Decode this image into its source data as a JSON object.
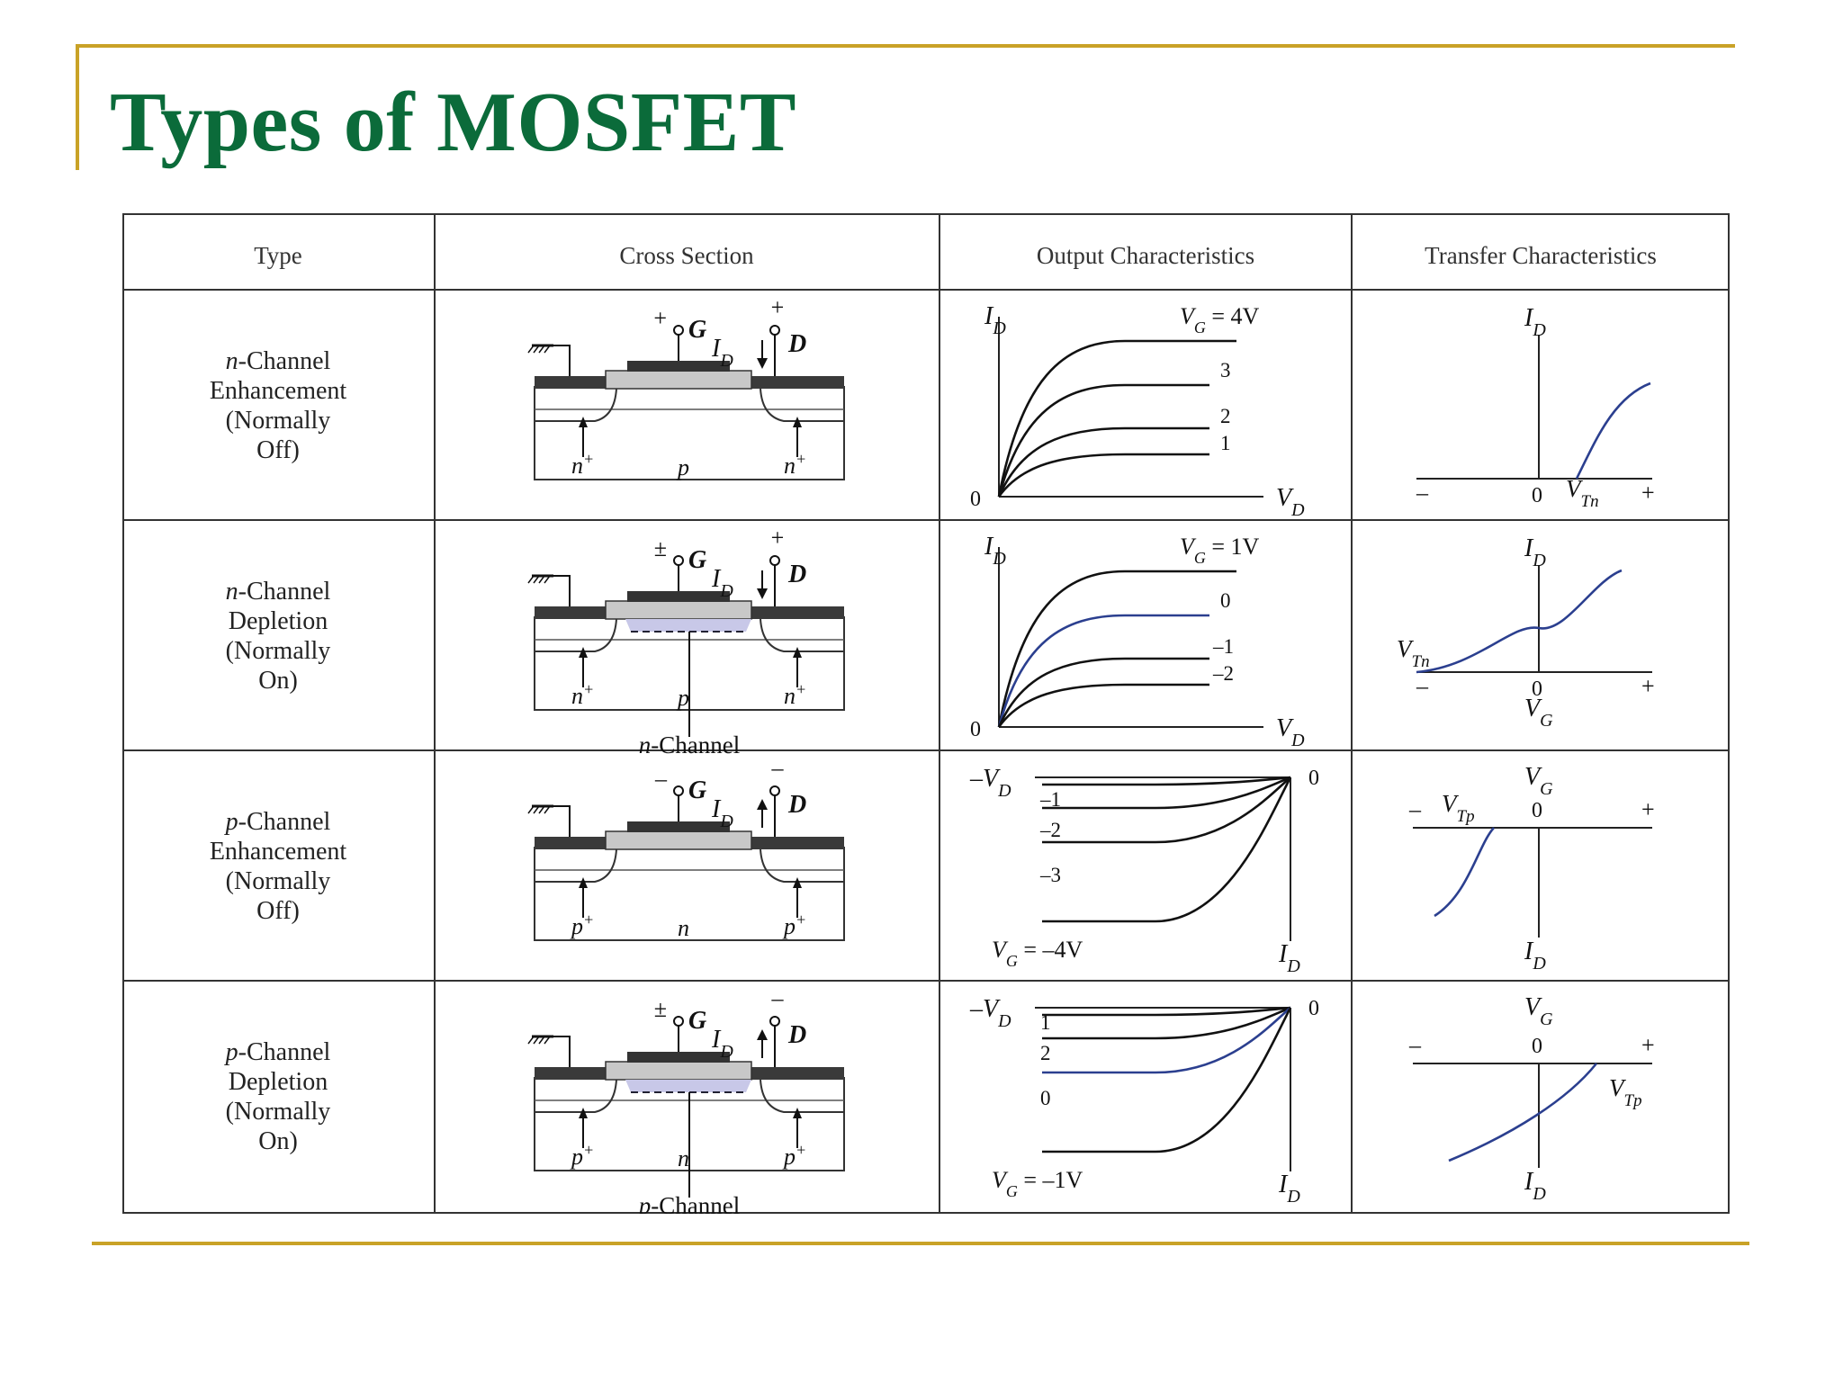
{
  "title": "Types of MOSFET",
  "colors": {
    "title": "#0b6b3a",
    "rule": "#c9a227",
    "blue_curve": "#2b3f8f"
  },
  "headers": [
    "Type",
    "Cross Section",
    "Output Characteristics",
    "Transfer Characteristics"
  ],
  "rows": [
    {
      "type_lines": [
        "n-Channel",
        "Enhancement",
        "(Normally",
        "Off)"
      ],
      "cross": {
        "g_sign": "+",
        "d_sign": "+",
        "g": "G",
        "d": "D",
        "id": "I",
        "id_sub": "D",
        "left": "n",
        "left_sup": "+",
        "body": "p",
        "right": "n",
        "right_sup": "+",
        "channel_label": ""
      },
      "output": {
        "ylab": "I",
        "ylab_sub": "D",
        "xlab": "V",
        "xlab_sub": "D",
        "origin": "0",
        "vg_label": "V",
        "vg_sub": "G",
        "vg_value": "= 4V",
        "curve_labels": [
          "3",
          "2",
          "1"
        ]
      },
      "transfer": {
        "ylab": "I",
        "ylab_sub": "D",
        "minus": "–",
        "plus": "+",
        "zero": "0",
        "vt": "V",
        "vt_sub": "Tn"
      }
    },
    {
      "type_lines": [
        "n-Channel",
        "Depletion",
        "(Normally",
        "On)"
      ],
      "cross": {
        "g_sign": "±",
        "d_sign": "+",
        "g": "G",
        "d": "D",
        "id": "I",
        "id_sub": "D",
        "left": "n",
        "left_sup": "+",
        "body": "p",
        "right": "n",
        "right_sup": "+",
        "channel_label": "n-Channel"
      },
      "output": {
        "ylab": "I",
        "ylab_sub": "D",
        "xlab": "V",
        "xlab_sub": "D",
        "origin": "0",
        "vg_label": "V",
        "vg_sub": "G",
        "vg_value": "= 1V",
        "curve_labels": [
          "0",
          "–1",
          "–2"
        ]
      },
      "transfer": {
        "ylab": "I",
        "ylab_sub": "D",
        "minus": "–",
        "plus": "+",
        "zero": "0",
        "vt": "V",
        "vt_sub": "Tn",
        "xlab": "V",
        "xlab_sub": "G"
      }
    },
    {
      "type_lines": [
        "p-Channel",
        "Enhancement",
        "(Normally",
        "Off)"
      ],
      "cross": {
        "g_sign": "–",
        "d_sign": "–",
        "g": "G",
        "d": "D",
        "id": "I",
        "id_sub": "D",
        "left": "p",
        "left_sup": "+",
        "body": "n",
        "right": "p",
        "right_sup": "+",
        "channel_label": ""
      },
      "output": {
        "ylab": "–V",
        "ylab_sub": "D",
        "xlab": "I",
        "xlab_sub": "D",
        "origin": "0",
        "vg_label": "V",
        "vg_sub": "G",
        "vg_value": "= –4V",
        "curve_labels": [
          "–1",
          "–2",
          "–3"
        ]
      },
      "transfer": {
        "ylab": "V",
        "ylab_sub": "G",
        "minus": "–",
        "plus": "+",
        "zero": "0",
        "vt": "V",
        "vt_sub": "Tp",
        "xlab": "I",
        "xlab_sub": "D"
      }
    },
    {
      "type_lines": [
        "p-Channel",
        "Depletion",
        "(Normally",
        "On)"
      ],
      "cross": {
        "g_sign": "±",
        "d_sign": "–",
        "g": "G",
        "d": "D",
        "id": "I",
        "id_sub": "D",
        "left": "p",
        "left_sup": "+",
        "body": "n",
        "right": "p",
        "right_sup": "+",
        "channel_label": "p-Channel"
      },
      "output": {
        "ylab": "–V",
        "ylab_sub": "D",
        "xlab": "I",
        "xlab_sub": "D",
        "origin": "0",
        "vg_label": "V",
        "vg_sub": "G",
        "vg_value": "= –1V",
        "curve_labels": [
          "1",
          "2",
          "0"
        ]
      },
      "transfer": {
        "ylab": "V",
        "ylab_sub": "G",
        "minus": "–",
        "plus": "+",
        "zero": "0",
        "vt": "V",
        "vt_sub": "Tp",
        "xlab": "I",
        "xlab_sub": "D"
      }
    }
  ]
}
